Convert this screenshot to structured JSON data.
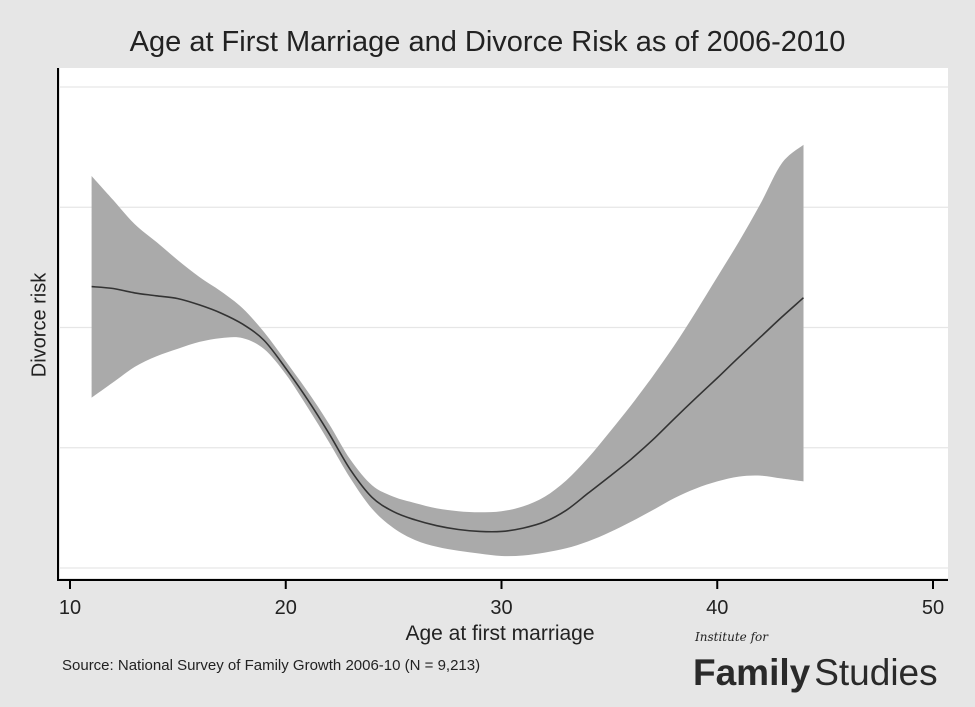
{
  "chart_data": {
    "type": "line",
    "title": "Age at First Marriage and Divorce Risk as of 2006-2010",
    "xlabel": "Age at first marriage",
    "ylabel": "Divorce risk",
    "xlim": [
      10,
      50
    ],
    "ylim": [
      0,
      1
    ],
    "xticks": [
      "10",
      "20",
      "30",
      "40",
      "50"
    ],
    "grid": true,
    "legend": "none",
    "series": [
      {
        "x": [
          11,
          12,
          13,
          14,
          15,
          16,
          17,
          18,
          19,
          20,
          21,
          22,
          23,
          24,
          25,
          26,
          27,
          28,
          29,
          30,
          31,
          32,
          33,
          34,
          35,
          36,
          37,
          38,
          39,
          40,
          41,
          42,
          43,
          44
        ],
        "y": [
          0.585,
          0.581,
          0.572,
          0.566,
          0.56,
          0.547,
          0.53,
          0.507,
          0.473,
          0.415,
          0.351,
          0.28,
          0.204,
          0.147,
          0.117,
          0.1,
          0.088,
          0.08,
          0.076,
          0.076,
          0.083,
          0.096,
          0.12,
          0.155,
          0.19,
          0.226,
          0.266,
          0.31,
          0.353,
          0.395,
          0.438,
          0.48,
          0.522,
          0.562
        ],
        "ci_lower": [
          0.354,
          0.386,
          0.418,
          0.44,
          0.456,
          0.47,
          0.478,
          0.478,
          0.455,
          0.403,
          0.335,
          0.262,
          0.186,
          0.123,
          0.083,
          0.058,
          0.044,
          0.036,
          0.03,
          0.025,
          0.026,
          0.032,
          0.041,
          0.055,
          0.074,
          0.096,
          0.12,
          0.145,
          0.165,
          0.18,
          0.19,
          0.192,
          0.186,
          0.18
        ],
        "ci_upper": [
          0.815,
          0.765,
          0.715,
          0.678,
          0.64,
          0.605,
          0.575,
          0.54,
          0.49,
          0.43,
          0.368,
          0.3,
          0.225,
          0.172,
          0.148,
          0.135,
          0.124,
          0.118,
          0.116,
          0.118,
          0.128,
          0.148,
          0.182,
          0.228,
          0.282,
          0.338,
          0.398,
          0.462,
          0.532,
          0.605,
          0.678,
          0.757,
          0.842,
          0.88
        ]
      }
    ]
  },
  "footer": {
    "source": "Source: National Survey of Family Growth 2006-10 (N = 9,213)"
  },
  "logo": {
    "small_text": "Institute for",
    "word1": "Family",
    "word2": "Studies"
  },
  "colors": {
    "band": "#aaaaaa",
    "line": "#333333",
    "grid": "#e6e6e6",
    "background": "#e6e6e6"
  }
}
